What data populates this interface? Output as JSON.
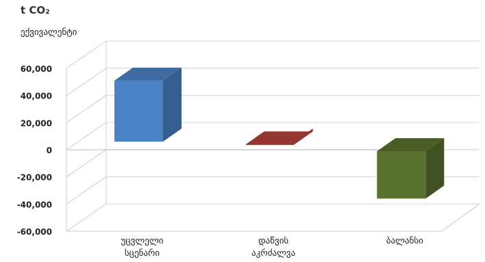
{
  "chart_data": {
    "type": "bar",
    "title": "t CO₂",
    "ylabel": "ექვივალენტი",
    "xlabel": "",
    "categories": [
      [
        "უცვლელი",
        "სცენარი"
      ],
      [
        "დაწვის",
        "აკრძალვა"
      ],
      [
        "ბალანსი"
      ]
    ],
    "values": [
      52000,
      5000,
      -42000
    ],
    "bar_colors": [
      "#4a82c5",
      "#b5423c",
      "#5a7130"
    ],
    "ylim": [
      -60000,
      60000
    ],
    "yticks": [
      60000,
      40000,
      20000,
      0,
      -20000,
      -40000,
      -60000
    ],
    "ytick_labels": [
      "60,000",
      "40,000",
      "20,000",
      "0",
      "-20,000",
      "-40,000",
      "-60,000"
    ],
    "grid": true,
    "style": "3d-column"
  }
}
